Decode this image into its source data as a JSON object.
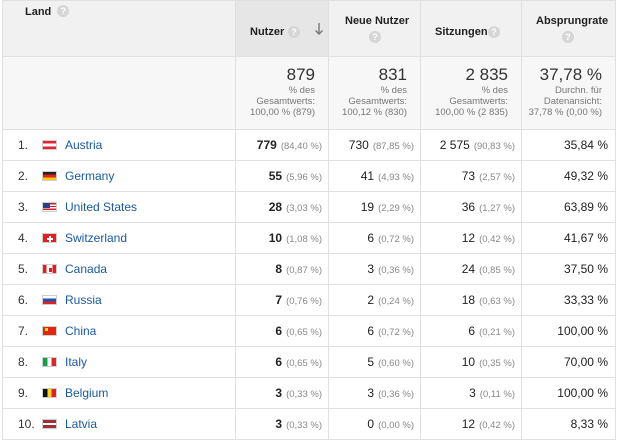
{
  "headers": {
    "land": "Land",
    "nutzer": "Nutzer",
    "neue_nutzer": "Neue Nutzer",
    "sitzungen": "Sitzungen",
    "absprungrate": "Absprungrate",
    "help_glyph": "?"
  },
  "summary": {
    "nutzer": {
      "value": "879",
      "line1": "% des",
      "line2": "Gesamtwerts:",
      "line3": "100,00 % (879)"
    },
    "neue_nutzer": {
      "value": "831",
      "line1": "% des",
      "line2": "Gesamtwerts:",
      "line3": "100,12 % (830)"
    },
    "sitzungen": {
      "value": "2 835",
      "line1": "% des",
      "line2": "Gesamtwerts:",
      "line3": "100,00 % (2 835)"
    },
    "absprungrate": {
      "value": "37,78 %",
      "line1": "Durchn. für",
      "line2": "Datenansicht:",
      "line3": "37,78 % (0,00 %)"
    }
  },
  "rows": [
    {
      "idx": "1.",
      "flag": "at",
      "country": "Austria",
      "nutzer": "779",
      "nutzer_pct": "(84,40 %)",
      "neue": "730",
      "neue_pct": "(87,85 %)",
      "sitz": "2 575",
      "sitz_pct": "(90,83 %)",
      "absp": "35,84 %"
    },
    {
      "idx": "2.",
      "flag": "de",
      "country": "Germany",
      "nutzer": "55",
      "nutzer_pct": "(5,96 %)",
      "neue": "41",
      "neue_pct": "(4,93 %)",
      "sitz": "73",
      "sitz_pct": "(2,57 %)",
      "absp": "49,32 %"
    },
    {
      "idx": "3.",
      "flag": "us",
      "country": "United States",
      "nutzer": "28",
      "nutzer_pct": "(3,03 %)",
      "neue": "19",
      "neue_pct": "(2,29 %)",
      "sitz": "36",
      "sitz_pct": "(1,27 %)",
      "absp": "63,89 %"
    },
    {
      "idx": "4.",
      "flag": "ch",
      "country": "Switzerland",
      "nutzer": "10",
      "nutzer_pct": "(1,08 %)",
      "neue": "6",
      "neue_pct": "(0,72 %)",
      "sitz": "12",
      "sitz_pct": "(0,42 %)",
      "absp": "41,67 %"
    },
    {
      "idx": "5.",
      "flag": "ca",
      "country": "Canada",
      "nutzer": "8",
      "nutzer_pct": "(0,87 %)",
      "neue": "3",
      "neue_pct": "(0,36 %)",
      "sitz": "24",
      "sitz_pct": "(0,85 %)",
      "absp": "37,50 %"
    },
    {
      "idx": "6.",
      "flag": "ru",
      "country": "Russia",
      "nutzer": "7",
      "nutzer_pct": "(0,76 %)",
      "neue": "2",
      "neue_pct": "(0,24 %)",
      "sitz": "18",
      "sitz_pct": "(0,63 %)",
      "absp": "33,33 %"
    },
    {
      "idx": "7.",
      "flag": "cn",
      "country": "China",
      "nutzer": "6",
      "nutzer_pct": "(0,65 %)",
      "neue": "6",
      "neue_pct": "(0,72 %)",
      "sitz": "6",
      "sitz_pct": "(0,21 %)",
      "absp": "100,00 %"
    },
    {
      "idx": "8.",
      "flag": "it",
      "country": "Italy",
      "nutzer": "6",
      "nutzer_pct": "(0,65 %)",
      "neue": "5",
      "neue_pct": "(0,60 %)",
      "sitz": "10",
      "sitz_pct": "(0,35 %)",
      "absp": "70,00 %"
    },
    {
      "idx": "9.",
      "flag": "be",
      "country": "Belgium",
      "nutzer": "3",
      "nutzer_pct": "(0,33 %)",
      "neue": "3",
      "neue_pct": "(0,36 %)",
      "sitz": "3",
      "sitz_pct": "(0,11 %)",
      "absp": "100,00 %"
    },
    {
      "idx": "10.",
      "flag": "lv",
      "country": "Latvia",
      "nutzer": "3",
      "nutzer_pct": "(0,33 %)",
      "neue": "0",
      "neue_pct": "(0,00 %)",
      "sitz": "12",
      "sitz_pct": "(0,42 %)",
      "absp": "8,33 %"
    }
  ],
  "colors": {
    "header_bg": "#f1f1f1",
    "sorted_header_bg": "#e6e6e6",
    "summary_bg": "#f7f7f7",
    "link": "#1a5aa0",
    "border": "#e0e0e0"
  }
}
